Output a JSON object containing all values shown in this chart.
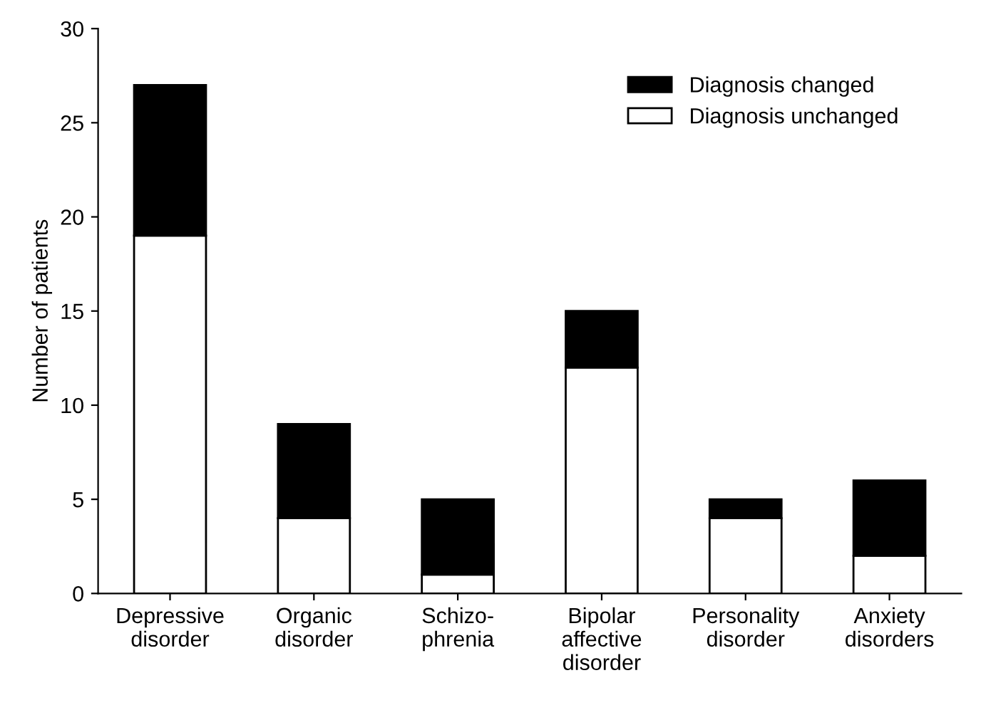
{
  "chart_data": {
    "type": "bar",
    "stacked": true,
    "ylabel": "Number of patients",
    "categories": [
      "Depressive\ndisorder",
      "Organic\ndisorder",
      "Schizo-\nphrenia",
      "Bipolar\naffective\ndisorder",
      "Personality\ndisorder",
      "Anxiety\ndisorders"
    ],
    "series": [
      {
        "name": "Diagnosis unchanged",
        "color": "#ffffff",
        "values": [
          19,
          4,
          1,
          12,
          4,
          2
        ]
      },
      {
        "name": "Diagnosis changed",
        "color": "#000000",
        "values": [
          8,
          5,
          4,
          3,
          1,
          4
        ]
      }
    ],
    "ylim": [
      0,
      30
    ],
    "yticks": [
      0,
      5,
      10,
      15,
      20,
      25,
      30
    ],
    "grid": false,
    "legend": "top right"
  }
}
